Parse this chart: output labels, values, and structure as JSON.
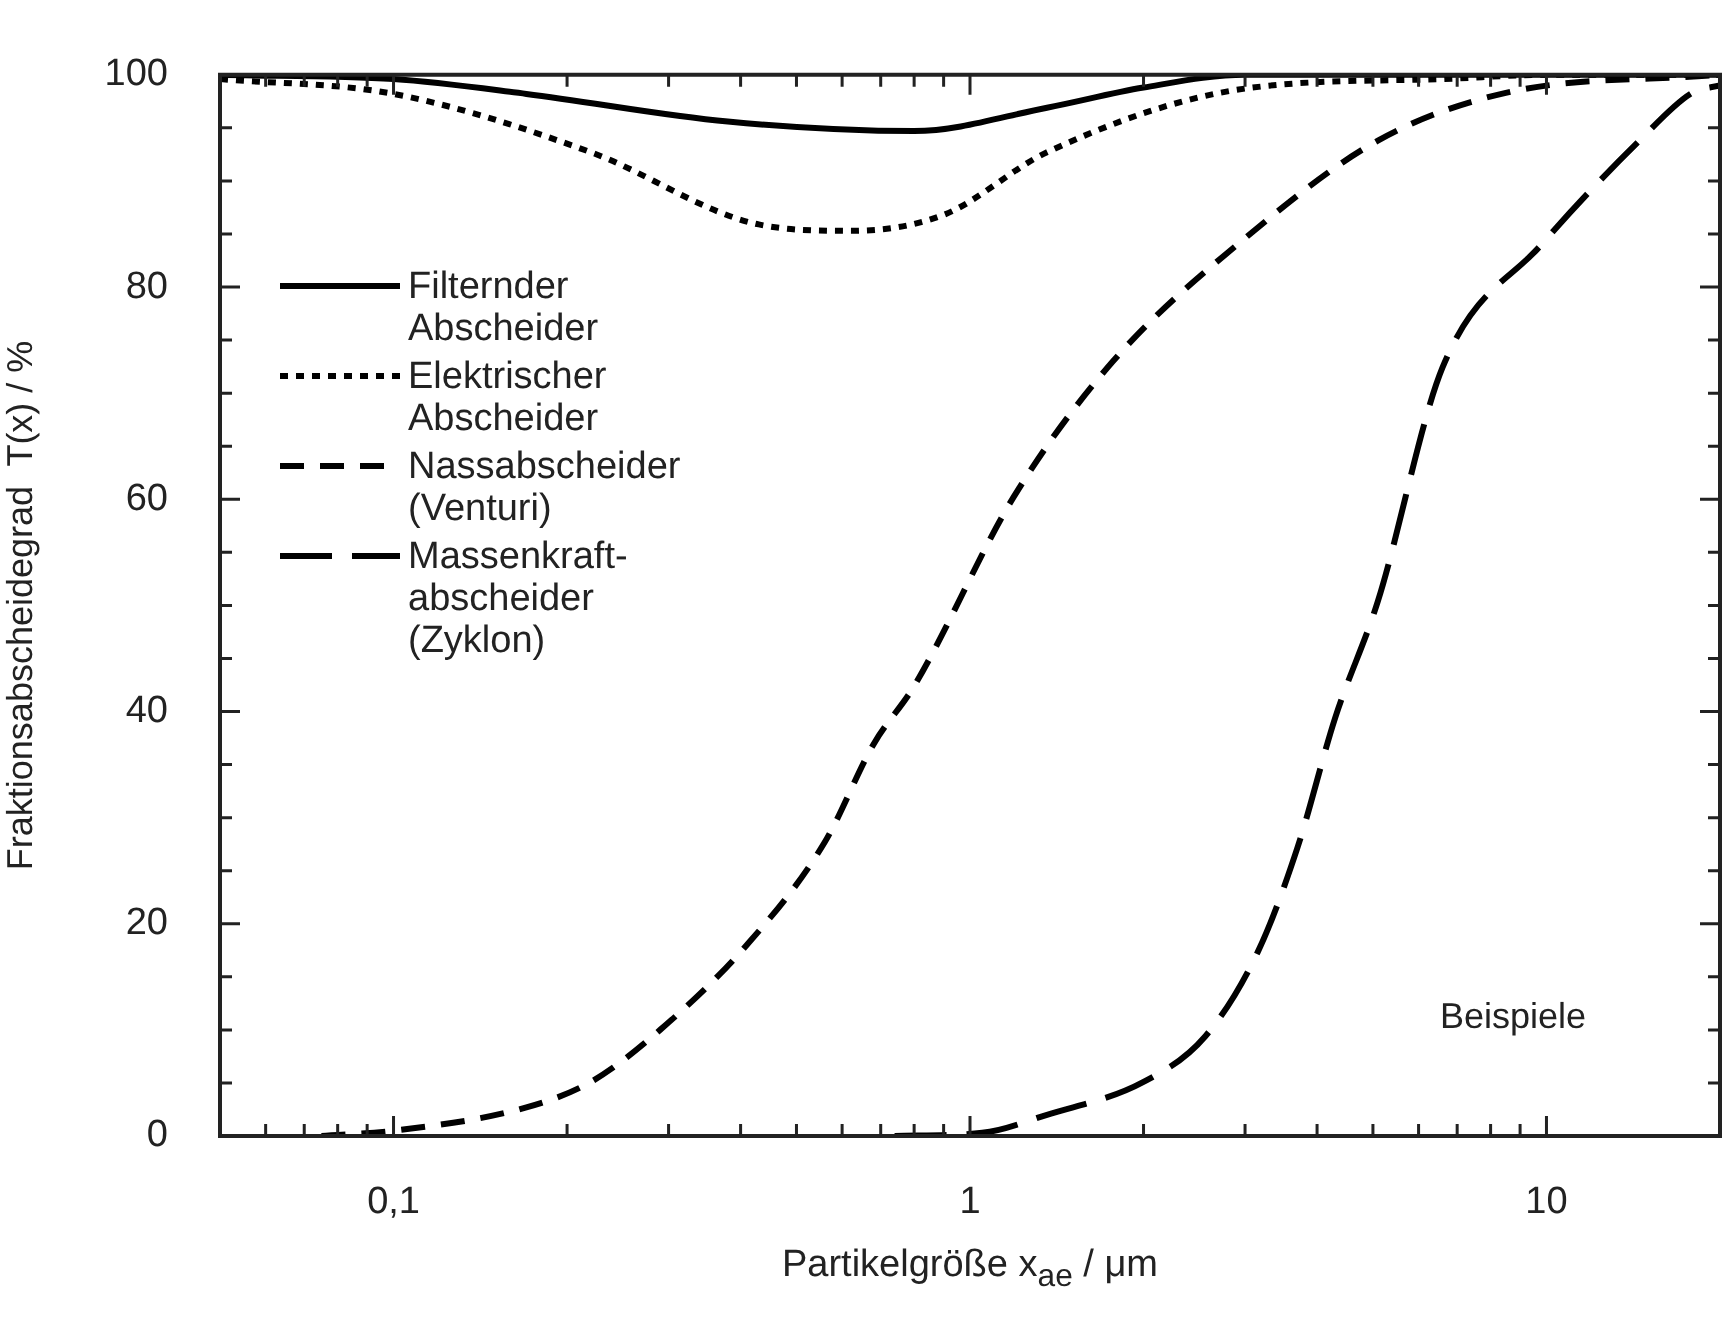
{
  "chart_data": {
    "type": "line",
    "xlabel": "Partikelgröße  x$_{ae}$ / μm",
    "ylabel": "Fraktionsabscheidegrad  T(x) / %",
    "log": "x",
    "xlim": [
      0.05,
      20
    ],
    "ylim": [
      0,
      100
    ],
    "xticks": [
      {
        "value": 0.06,
        "label": null
      },
      {
        "value": 0.07,
        "label": null
      },
      {
        "value": 0.08,
        "label": null
      },
      {
        "value": 0.09,
        "label": null
      },
      {
        "value": 0.1,
        "label": "0,1"
      },
      {
        "value": 0.2,
        "label": null
      },
      {
        "value": 0.3,
        "label": null
      },
      {
        "value": 0.4,
        "label": null
      },
      {
        "value": 0.5,
        "label": null
      },
      {
        "value": 0.6,
        "label": null
      },
      {
        "value": 0.7,
        "label": null
      },
      {
        "value": 0.8,
        "label": null
      },
      {
        "value": 0.9,
        "label": null
      },
      1,
      {
        "value": 2,
        "label": null
      },
      {
        "value": 3,
        "label": null
      },
      {
        "value": 4,
        "label": null
      },
      {
        "value": 5,
        "label": null
      },
      {
        "value": 6,
        "label": null
      },
      {
        "value": 7,
        "label": null
      },
      {
        "value": 8,
        "label": null
      },
      {
        "value": 9,
        "label": null
      },
      10
    ],
    "yticks": [
      0,
      {
        "value": 5,
        "label": null
      },
      {
        "value": 10,
        "label": null
      },
      {
        "value": 15,
        "label": null
      },
      20,
      {
        "value": 25,
        "label": null
      },
      {
        "value": 30,
        "label": null
      },
      {
        "value": 35,
        "label": null
      },
      40,
      {
        "value": 45,
        "label": null
      },
      {
        "value": 50,
        "label": null
      },
      {
        "value": 55,
        "label": null
      },
      60,
      {
        "value": 65,
        "label": null
      },
      {
        "value": 70,
        "label": null
      },
      {
        "value": 75,
        "label": null
      },
      80,
      {
        "value": 85,
        "label": null
      },
      {
        "value": 90,
        "label": null
      },
      {
        "value": 95,
        "label": null
      },
      100
    ],
    "grid": false,
    "legend": "top left",
    "annotations": [
      "Beispiele"
    ],
    "series": [
      {
        "name": "Filternder Abscheider",
        "color": "#000000",
        "line_style": "solid",
        "x": [
          0.05,
          0.1,
          0.17,
          0.38,
          0.8,
          1.36,
          2,
          3,
          10,
          20
        ],
        "values": [
          100,
          99.6,
          98.2,
          95.6,
          94.7,
          96.9,
          98.8,
          100,
          100,
          100
        ]
      },
      {
        "name": "Elektrischer Abscheider",
        "color": "#000000",
        "line_style": "dotted",
        "x": [
          0.05,
          0.1,
          0.22,
          0.43,
          0.62,
          0.9,
          1.36,
          3,
          6.6,
          10,
          20
        ],
        "values": [
          99.6,
          98.2,
          92.7,
          85.9,
          85.3,
          86.8,
          92.7,
          98.7,
          99.6,
          100,
          100
        ]
      },
      {
        "name": "Nassabscheider (Venturi)",
        "color": "#000000",
        "line_style": "dashed",
        "x": [
          0.075,
          0.1,
          0.17,
          0.22,
          0.29,
          0.41,
          0.56,
          0.68,
          0.8,
          1.19,
          1.77,
          3,
          5.1,
          8.5,
          20
        ],
        "values": [
          0,
          0.5,
          2.7,
          5.1,
          10,
          18,
          27.7,
          36.9,
          42.4,
          60.2,
          73,
          84.6,
          93.8,
          98.3,
          100
        ]
      },
      {
        "name": "Massenkraft-abscheider (Zyklon)",
        "color": "#000000",
        "line_style": "dashed",
        "x": [
          0.74,
          1.05,
          1.36,
          2,
          2.56,
          3.16,
          3.7,
          4.3,
          5.1,
          6.6,
          9.8,
          14.5,
          17.9,
          20
        ],
        "values": [
          0,
          0.3,
          2,
          5.1,
          9.4,
          17.4,
          27.2,
          39.4,
          50.4,
          72.4,
          84,
          93.8,
          98.3,
          99
        ]
      }
    ]
  }
}
